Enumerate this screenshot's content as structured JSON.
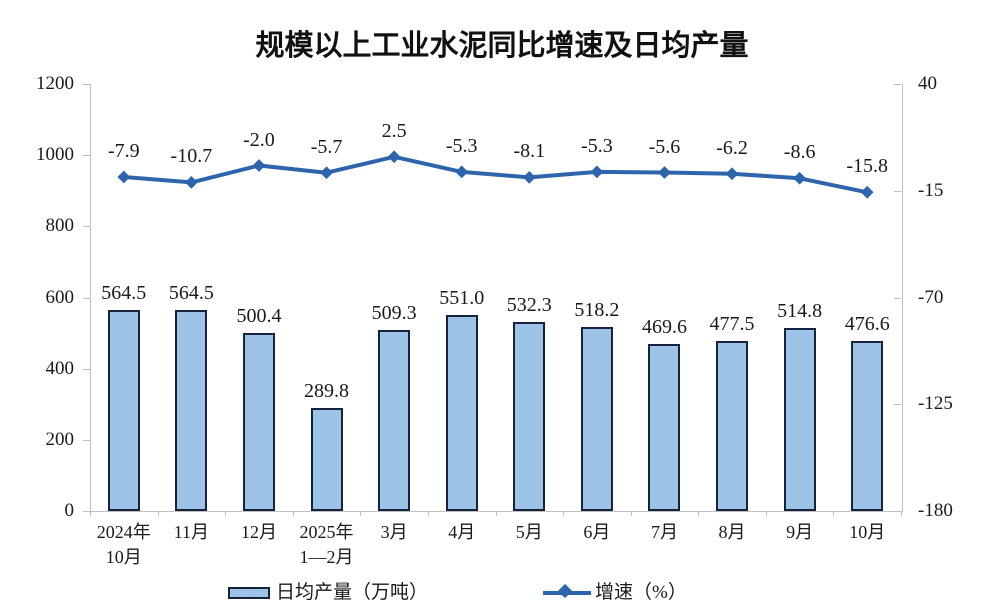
{
  "title": "规模以上工业水泥同比增速及日均产量",
  "colors": {
    "bar_fill": "#9DC3E6",
    "bar_border": "#17233D",
    "line": "#2E64AC",
    "axis": "#BFBFBF",
    "text": "#1A1A1A"
  },
  "legend": {
    "bar_label": "日均产量（万吨）",
    "line_label": "增速（%）"
  },
  "chart_data": {
    "type": "bar",
    "subtype": "combo-bar-line",
    "title": "规模以上工业水泥同比增速及日均产量",
    "categories": [
      [
        "2024年",
        "10月"
      ],
      [
        "11月"
      ],
      [
        "12月"
      ],
      [
        "2025年",
        "1—2月"
      ],
      [
        "3月"
      ],
      [
        "4月"
      ],
      [
        "5月"
      ],
      [
        "6月"
      ],
      [
        "7月"
      ],
      [
        "8月"
      ],
      [
        "9月"
      ],
      [
        "10月"
      ]
    ],
    "series": [
      {
        "name": "日均产量（万吨）",
        "type": "bar",
        "axis": "left",
        "values": [
          564.5,
          564.5,
          500.4,
          289.8,
          509.3,
          551.0,
          532.3,
          518.2,
          469.6,
          477.5,
          514.8,
          476.6
        ],
        "labels": [
          "564.5",
          "564.5",
          "500.4",
          "289.8",
          "509.3",
          "551.0",
          "532.3",
          "518.2",
          "469.6",
          "477.5",
          "514.8",
          "476.6"
        ]
      },
      {
        "name": "增速（%）",
        "type": "line",
        "axis": "right",
        "values": [
          -7.9,
          -10.7,
          -2.0,
          -5.7,
          2.5,
          -5.3,
          -8.1,
          -5.3,
          -5.6,
          -6.2,
          -8.6,
          -15.8
        ],
        "labels": [
          "-7.9",
          "-10.7",
          "-2.0",
          "-5.7",
          "2.5",
          "-5.3",
          "-8.1",
          "-5.3",
          "-5.6",
          "-6.2",
          "-8.6",
          "-15.8"
        ]
      }
    ],
    "left_axis": {
      "min": 0,
      "max": 1200,
      "ticks": [
        0,
        200,
        400,
        600,
        800,
        1000,
        1200
      ]
    },
    "right_axis": {
      "min": -180,
      "max": 40,
      "ticks": [
        40,
        -15,
        -70,
        -125,
        -180
      ]
    },
    "grid": false,
    "legend_position": "bottom"
  }
}
